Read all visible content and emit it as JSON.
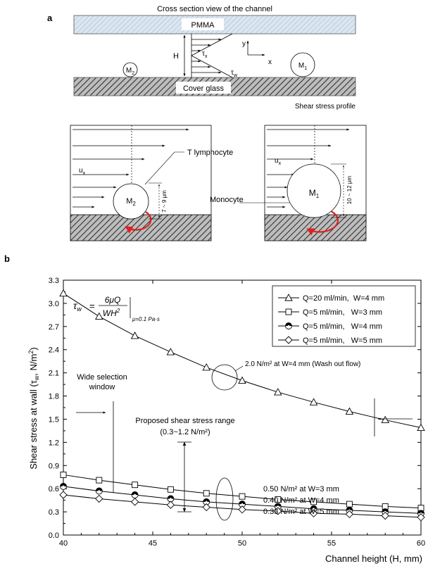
{
  "panel_a": {
    "label": "a",
    "title": "Cross section view of the channel",
    "pmma": "PMMA",
    "cover_glass": "Cover glass",
    "h_label": "H",
    "tau_x": "τ",
    "tau_x_sub": "x",
    "tau_w": "τ",
    "tau_w_sub": "w",
    "y_label": "y",
    "x_label": "x",
    "m1": "M",
    "m1_sub": "1",
    "m2": "M",
    "m2_sub": "2",
    "profile_label": "Shear stress profile",
    "t_lymphocyte": "T lymphocyte",
    "monocyte": "Monocyte",
    "ux": "u",
    "ux_sub": "x",
    "size_small": "7 ~ 9 μm",
    "size_large": "10 ~ 12 μm"
  },
  "panel_b": {
    "label": "b",
    "ylabel": "Shear stress at wall (τ",
    "ylabel_sub": "w",
    "ylabel_tail": ", N/m",
    "ylabel_sup": "2",
    "ylabel_end": ")",
    "xlabel": "Channel height (H, mm)",
    "eq_lhs": "τ",
    "eq_lhs_sub": "w",
    "eq_eq": "=",
    "eq_num": "6μQ",
    "eq_den": "WH",
    "eq_den_sup": "2",
    "eq_cond": "μ=0.1 Pa·s",
    "annot_wash": "2.0 N/m² at W=4 mm (Wash out flow)",
    "annot_window_1": "Wide selection",
    "annot_window_2": "window",
    "annot_range_1": "Proposed shear stress range",
    "annot_range_2": "(0.3~1.2 N/m²)",
    "annot_low_1": "0.50 N/m² at W=3 mm",
    "annot_low_2": "0.40 N/m² at W=4 mm",
    "annot_low_3": "0.33 N/m² at W=5 mm"
  },
  "chart_data": {
    "type": "line",
    "xlabel": "Channel height (H, mm)",
    "ylabel": "Shear stress at wall (τw, N/m²)",
    "xlim": [
      40,
      60
    ],
    "ylim": [
      0.0,
      3.3
    ],
    "xticks": [
      "40",
      "45",
      "50",
      "55",
      "60"
    ],
    "yticks": [
      "0.0",
      "0.3",
      "0.6",
      "0.9",
      "1.2",
      "1.5",
      "1.8",
      "2.1",
      "2.4",
      "2.7",
      "3.0",
      "3.3"
    ],
    "grid": false,
    "legend_position": "top-right",
    "x": [
      40,
      42,
      44,
      46,
      48,
      50,
      52,
      54,
      56,
      58,
      60
    ],
    "series": [
      {
        "name": "Q=20 ml/min,  W=4 mm",
        "marker": "triangle",
        "values": [
          3.13,
          2.83,
          2.58,
          2.37,
          2.17,
          2.0,
          1.85,
          1.72,
          1.6,
          1.49,
          1.39
        ]
      },
      {
        "name": "Q=5 ml/min,   W=3 mm",
        "marker": "square",
        "values": [
          0.78,
          0.71,
          0.65,
          0.59,
          0.54,
          0.5,
          0.46,
          0.43,
          0.4,
          0.37,
          0.35
        ]
      },
      {
        "name": "Q=5 ml/min,   W=4 mm",
        "marker": "circle-half",
        "values": [
          0.63,
          0.57,
          0.52,
          0.47,
          0.43,
          0.4,
          0.37,
          0.34,
          0.32,
          0.3,
          0.28
        ]
      },
      {
        "name": "Q=5 ml/min,   W=5 mm",
        "marker": "diamond",
        "values": [
          0.52,
          0.47,
          0.43,
          0.39,
          0.36,
          0.33,
          0.31,
          0.28,
          0.27,
          0.25,
          0.23
        ]
      }
    ]
  }
}
